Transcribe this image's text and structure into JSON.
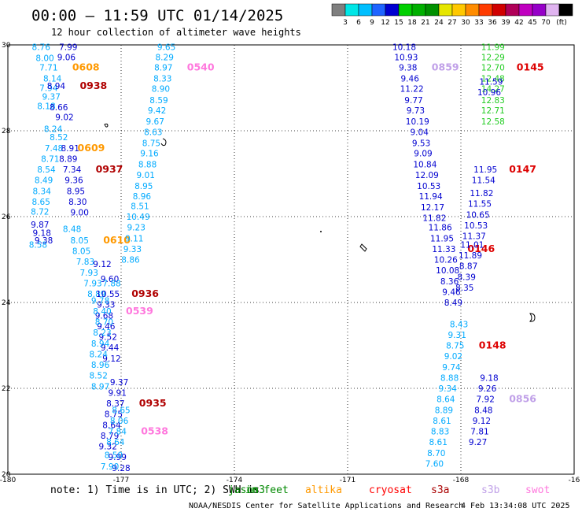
{
  "header": {
    "title": "00:00 – 11:59 UTC 01/14/2025",
    "subtitle": "12 hour collection of altimeter wave heights"
  },
  "colorbar": {
    "unit": "(ft)",
    "bins": [
      {
        "color": "#7f7f7f",
        "label": ""
      },
      {
        "color": "#00e6e6",
        "label": "3"
      },
      {
        "color": "#00bfff",
        "label": "6"
      },
      {
        "color": "#1e64ff",
        "label": "9"
      },
      {
        "color": "#0000d0",
        "label": "12"
      },
      {
        "color": "#00d000",
        "label": "15"
      },
      {
        "color": "#00b000",
        "label": "18"
      },
      {
        "color": "#009000",
        "label": "21"
      },
      {
        "color": "#e6e600",
        "label": "24"
      },
      {
        "color": "#ffc800",
        "label": "27"
      },
      {
        "color": "#ff8c00",
        "label": "30"
      },
      {
        "color": "#ff3c00",
        "label": "33"
      },
      {
        "color": "#d00000",
        "label": "36"
      },
      {
        "color": "#b00058",
        "label": "39"
      },
      {
        "color": "#c000c0",
        "label": "42"
      },
      {
        "color": "#9600c8",
        "label": "45"
      },
      {
        "color": "#e0b4f0",
        "label": "70"
      },
      {
        "color": "#000000",
        "label": ""
      }
    ]
  },
  "axes": {
    "lon_ticks": [
      "-180",
      "-177",
      "-174",
      "-171",
      "-168",
      "-16"
    ],
    "lat_ticks": [
      "30",
      "28",
      "26",
      "24",
      "22",
      "20"
    ],
    "lon_range": [
      -180,
      -165
    ],
    "lat_range": [
      20,
      30
    ]
  },
  "tracks": [
    {
      "name": "saral-west",
      "color": "#00aaff",
      "pass_time": "0608",
      "pass_color": "#ff9900",
      "points": [
        [
          -179.12,
          29.95,
          "8.76"
        ],
        [
          -179.02,
          29.7,
          "8.00"
        ],
        [
          -178.92,
          29.48,
          "7.71"
        ],
        [
          -178.82,
          29.22,
          "8.14"
        ],
        [
          -178.92,
          29.0,
          "7.94"
        ],
        [
          -178.85,
          28.8,
          "9.37"
        ],
        [
          -178.98,
          28.58,
          "8.18"
        ]
      ]
    },
    {
      "name": "saral-west-2",
      "color": "#00aaff",
      "pass_time": "0609",
      "pass_color": "#ff9900",
      "points": [
        [
          -178.8,
          28.05,
          "8.24"
        ],
        [
          -178.65,
          27.85,
          "8.52"
        ],
        [
          -178.78,
          27.6,
          "7.48"
        ],
        [
          -178.88,
          27.35,
          "8.71"
        ],
        [
          -178.98,
          27.1,
          "8.54"
        ],
        [
          -179.05,
          26.85,
          "8.49"
        ],
        [
          -179.1,
          26.6,
          "8.34"
        ],
        [
          -179.12,
          26.35,
          "8.65"
        ],
        [
          -179.15,
          26.12,
          "8.72"
        ]
      ]
    },
    {
      "name": "saral-west-3",
      "color": "#00aaff",
      "pass_time": "0610",
      "pass_color": "#ff9900",
      "points": [
        [
          -179.2,
          25.35,
          "8.58"
        ],
        [
          -178.3,
          25.72,
          "8.48"
        ],
        [
          -178.1,
          25.45,
          "8.05"
        ],
        [
          -178.05,
          25.2,
          "8.05"
        ],
        [
          -177.95,
          24.95,
          "7.83"
        ],
        [
          -177.85,
          24.7,
          "7.93"
        ],
        [
          -177.75,
          24.45,
          "7.93"
        ],
        [
          -177.65,
          24.2,
          "8.89"
        ]
      ]
    },
    {
      "name": "cryosat-west",
      "color": "#0000d0",
      "pass_time": "0938",
      "pass_color": "#b00000",
      "points": [
        [
          -178.4,
          29.95,
          "7.99"
        ],
        [
          -178.45,
          29.72,
          "9.06"
        ],
        [
          -178.72,
          29.05,
          "8.94"
        ],
        [
          -178.65,
          28.55,
          "8.66"
        ],
        [
          -178.5,
          28.32,
          "9.02"
        ]
      ]
    },
    {
      "name": "cryosat-west-2",
      "color": "#0000d0",
      "pass_time": "0937",
      "pass_color": "#b00000",
      "points": [
        [
          -178.35,
          27.6,
          "8.91"
        ],
        [
          -178.4,
          27.35,
          "8.89"
        ],
        [
          -178.3,
          27.1,
          "7.34"
        ],
        [
          -178.25,
          26.85,
          "9.36"
        ],
        [
          -178.2,
          26.6,
          "8.95"
        ],
        [
          -178.15,
          26.35,
          "8.30"
        ],
        [
          -178.1,
          26.1,
          "9.00"
        ],
        [
          -179.15,
          25.82,
          "9.87"
        ],
        [
          -179.1,
          25.62,
          "9.18"
        ],
        [
          -179.05,
          25.45,
          "9.38"
        ]
      ]
    },
    {
      "name": "cryosat-west-3",
      "color": "#0000d0",
      "pass_time": "0936",
      "pass_color": "#b00000",
      "points": [
        [
          -177.5,
          24.9,
          "9.12"
        ],
        [
          -177.3,
          24.55,
          "9.60"
        ],
        [
          -177.35,
          24.2,
          "10.55"
        ],
        [
          -177.4,
          23.95,
          "9.33"
        ],
        [
          -177.45,
          23.7,
          "9.68"
        ],
        [
          -177.4,
          23.45,
          "9.46"
        ],
        [
          -177.35,
          23.2,
          "9.52"
        ],
        [
          -177.3,
          22.95,
          "9.44"
        ],
        [
          -177.25,
          22.7,
          "9.12"
        ]
      ]
    },
    {
      "name": "cryosat-west-4",
      "color": "#0000d0",
      "pass_time": "0935",
      "pass_color": "#b00000",
      "points": [
        [
          -177.05,
          22.15,
          "9.37"
        ],
        [
          -177.1,
          21.9,
          "9.91"
        ],
        [
          -177.15,
          21.65,
          "8.37"
        ],
        [
          -177.2,
          21.4,
          "8.75"
        ],
        [
          -177.25,
          21.15,
          "8.64"
        ],
        [
          -177.3,
          20.9,
          "8.79"
        ],
        [
          -177.35,
          20.65,
          "9.32"
        ],
        [
          -177.1,
          20.4,
          "9.99"
        ],
        [
          -177.0,
          20.15,
          "9.28"
        ]
      ]
    },
    {
      "name": "sentinel-west",
      "color": "#00aaff",
      "pass_time": "0539",
      "pass_color": "#ff77dd",
      "points": [
        [
          -177.25,
          24.45,
          "7.88"
        ],
        [
          -177.55,
          24.05,
          "9.78"
        ],
        [
          -177.5,
          23.8,
          "8.40"
        ],
        [
          -177.45,
          23.55,
          "8.70"
        ],
        [
          -177.5,
          23.3,
          "8.23"
        ],
        [
          -177.55,
          23.05,
          "8.94"
        ],
        [
          -177.6,
          22.8,
          "8.24"
        ],
        [
          -177.55,
          22.55,
          "8.96"
        ],
        [
          -177.6,
          22.3,
          "8.52"
        ],
        [
          -177.55,
          22.05,
          "8.97"
        ]
      ]
    },
    {
      "name": "sentinel-west-2",
      "color": "#00aaff",
      "pass_time": "0538",
      "pass_color": "#ff77dd",
      "points": [
        [
          -177.0,
          21.5,
          "8.65"
        ],
        [
          -177.05,
          21.25,
          "8.06"
        ],
        [
          -177.1,
          21.0,
          "7.84"
        ],
        [
          -177.15,
          20.75,
          "8.64"
        ],
        [
          -177.2,
          20.45,
          "8.50"
        ],
        [
          -177.3,
          20.18,
          "7.90"
        ]
      ]
    },
    {
      "name": "sentinel-mid",
      "color": "#00aaff",
      "pass_time": "0540",
      "pass_color": "#ff77dd",
      "points": [
        [
          -175.8,
          29.95,
          "9.65"
        ],
        [
          -175.85,
          29.72,
          "8.29"
        ],
        [
          -175.88,
          29.48,
          "8.97"
        ],
        [
          -175.9,
          29.22,
          "8.33"
        ],
        [
          -175.95,
          28.98,
          "8.90"
        ],
        [
          -176.0,
          28.72,
          "8.59"
        ],
        [
          -176.05,
          28.48,
          "9.42"
        ],
        [
          -176.1,
          28.22,
          "9.67"
        ],
        [
          -176.15,
          27.97,
          "8.63"
        ],
        [
          -176.2,
          27.72,
          "8.75"
        ],
        [
          -176.25,
          27.48,
          "9.16"
        ],
        [
          -176.3,
          27.22,
          "8.88"
        ],
        [
          -176.35,
          26.97,
          "9.01"
        ],
        [
          -176.4,
          26.72,
          "8.95"
        ],
        [
          -176.45,
          26.48,
          "8.96"
        ],
        [
          -176.5,
          26.25,
          "8.51"
        ],
        [
          -176.55,
          26.0,
          "10.49"
        ],
        [
          -176.6,
          25.75,
          "9.23"
        ],
        [
          -176.65,
          25.5,
          "9.11"
        ],
        [
          -176.7,
          25.25,
          "9.33"
        ],
        [
          -176.75,
          25.0,
          "8.86"
        ]
      ]
    },
    {
      "name": "cryosat-east",
      "color": "#0000d0",
      "pass_time": "0859",
      "pass_color": "#c0a0e8",
      "points": [
        [
          -169.5,
          29.95,
          "10.18"
        ],
        [
          -169.45,
          29.72,
          "10.93"
        ],
        [
          -169.4,
          29.48,
          "9.38"
        ],
        [
          -169.35,
          29.22,
          "9.46"
        ],
        [
          -169.3,
          28.98,
          "11.22"
        ],
        [
          -169.25,
          28.72,
          "9.77"
        ],
        [
          -169.2,
          28.48,
          "9.73"
        ],
        [
          -169.15,
          28.22,
          "10.19"
        ],
        [
          -169.1,
          27.97,
          "9.04"
        ],
        [
          -169.05,
          27.72,
          "9.53"
        ],
        [
          -169.0,
          27.48,
          "9.09"
        ],
        [
          -168.95,
          27.22,
          "10.84"
        ],
        [
          -168.9,
          26.97,
          "12.09"
        ],
        [
          -168.85,
          26.72,
          "10.53"
        ],
        [
          -168.8,
          26.48,
          "11.94"
        ],
        [
          -168.75,
          26.22,
          "12.17"
        ],
        [
          -168.7,
          25.97,
          "11.82"
        ]
      ]
    },
    {
      "name": "cryosat-east-2",
      "color": "#0000d0",
      "pass_time": "0146",
      "pass_color": "#dd0000",
      "points": [
        [
          -168.55,
          25.75,
          "11.86"
        ],
        [
          -168.5,
          25.5,
          "11.95"
        ],
        [
          -168.45,
          25.25,
          "11.33"
        ],
        [
          -168.4,
          25.0,
          "10.26"
        ],
        [
          -168.35,
          24.75,
          "10.08"
        ],
        [
          -168.3,
          24.5,
          "8.36"
        ],
        [
          -168.25,
          24.25,
          "9.46"
        ],
        [
          -168.2,
          24.0,
          "8.49"
        ]
      ]
    },
    {
      "name": "jason-east",
      "color": "#22cc22",
      "pass_time": "0145",
      "pass_color": "#dd0000",
      "points": [
        [
          -167.15,
          29.95,
          "11.99"
        ],
        [
          -167.15,
          29.72,
          "12.29"
        ],
        [
          -167.15,
          29.48,
          "12.70"
        ],
        [
          -167.15,
          29.22,
          "12.48"
        ],
        [
          -167.15,
          28.98,
          "14.27"
        ],
        [
          -167.15,
          28.72,
          "12.83"
        ],
        [
          -167.15,
          28.48,
          "12.71"
        ],
        [
          -167.15,
          28.22,
          "12.58"
        ]
      ]
    },
    {
      "name": "swot-east",
      "color": "#0000d0",
      "pass_time": "0147",
      "pass_color": "#dd0000",
      "points": [
        [
          -167.2,
          29.15,
          "11.59"
        ],
        [
          -167.25,
          28.9,
          "10.96"
        ],
        [
          -167.35,
          27.1,
          "11.95"
        ],
        [
          -167.4,
          26.85,
          "11.54"
        ],
        [
          -167.45,
          26.55,
          "11.82"
        ],
        [
          -167.5,
          26.3,
          "11.55"
        ],
        [
          -167.55,
          26.05,
          "10.65"
        ],
        [
          -167.6,
          25.8,
          "10.53"
        ],
        [
          -167.65,
          25.55,
          "11.37"
        ],
        [
          -167.7,
          25.35,
          "11.01"
        ],
        [
          -167.75,
          25.1,
          "11.89"
        ],
        [
          -167.8,
          24.85,
          "8.87"
        ],
        [
          -167.85,
          24.6,
          "8.39"
        ],
        [
          -167.9,
          24.35,
          "8.35"
        ]
      ]
    },
    {
      "name": "sentinel-east",
      "color": "#00aaff",
      "pass_time": "0148",
      "pass_color": "#dd0000",
      "points": [
        [
          -168.05,
          23.5,
          "8.43"
        ],
        [
          -168.1,
          23.25,
          "9.31"
        ],
        [
          -168.15,
          23.0,
          "8.75"
        ],
        [
          -168.2,
          22.75,
          "9.02"
        ],
        [
          -168.25,
          22.5,
          "9.74"
        ],
        [
          -168.3,
          22.25,
          "8.88"
        ],
        [
          -168.35,
          22.0,
          "9.34"
        ],
        [
          -168.4,
          21.75,
          "8.64"
        ],
        [
          -168.45,
          21.5,
          "8.89"
        ],
        [
          -168.5,
          21.25,
          "8.61"
        ],
        [
          -168.55,
          21.0,
          "8.83"
        ],
        [
          -168.6,
          20.75,
          "8.61"
        ],
        [
          -168.65,
          20.5,
          "8.70"
        ],
        [
          -168.7,
          20.25,
          "7.60"
        ]
      ]
    },
    {
      "name": "swot-east-2",
      "color": "#0000d0",
      "pass_time": "0856",
      "pass_color": "#c0a0e8",
      "points": [
        [
          -167.25,
          22.25,
          "9.18"
        ],
        [
          -167.3,
          22.0,
          "9.26"
        ],
        [
          -167.35,
          21.75,
          "7.92"
        ],
        [
          -167.4,
          21.5,
          "8.48"
        ],
        [
          -167.45,
          21.25,
          "9.12"
        ],
        [
          -167.5,
          21.0,
          "7.81"
        ],
        [
          -167.55,
          20.75,
          "9.27"
        ]
      ]
    }
  ],
  "footer": {
    "note_prefix": "note: 1) Time is in UTC; 2) SWH is",
    "satellites": [
      {
        "name": "jason3",
        "color": "#008800"
      },
      {
        "name": "altika",
        "color": "#ff9900"
      },
      {
        "name": "cryosat",
        "color": "#ff0000"
      },
      {
        "name": "s3a",
        "color": "#aa0000"
      },
      {
        "name": "s3b",
        "color": "#c0a0e8"
      },
      {
        "name": "swot",
        "color": "#ff77dd"
      }
    ],
    "overlay_text": "in feet",
    "credit": "NOAA/NESDIS Center for Satellite Applications and Research",
    "generated": "4 Feb 13:34:08 UTC 2025"
  }
}
